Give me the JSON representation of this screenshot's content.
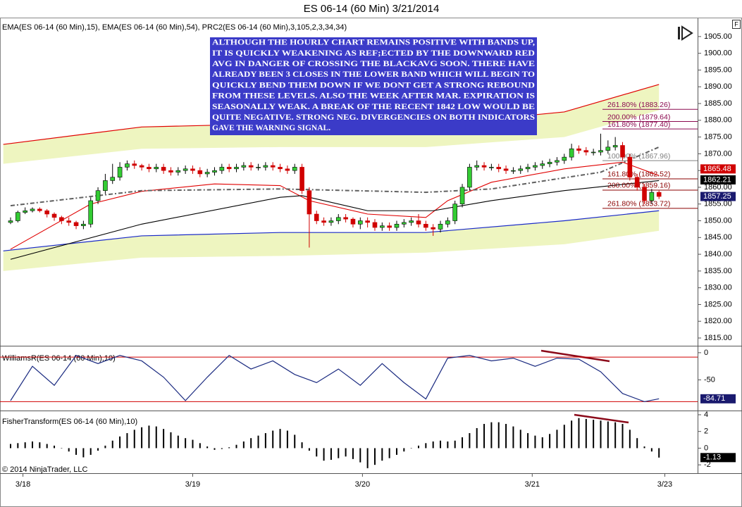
{
  "chart_data": [
    {
      "type": "candlestick",
      "title": "ES 06-14 (60 Min)  3/21/2014",
      "indicator_label": "EMA(ES 06-14 (60 Min),15), EMA(ES 06-14 (60 Min),54), PRC2(ES 06-14 (60 Min),3,105,2,3,34,34)",
      "xlim": [
        -1.45,
        94.3
      ],
      "ylim": [
        1812.9,
        1907.5
      ],
      "yticks": [
        {
          "value": 1905,
          "label": "1905.00"
        },
        {
          "value": 1900,
          "label": "1900.00"
        },
        {
          "value": 1895,
          "label": "1895.00"
        },
        {
          "value": 1890,
          "label": "1890.00"
        },
        {
          "value": 1885,
          "label": "1885.00"
        },
        {
          "value": 1880,
          "label": "1880.00"
        },
        {
          "value": 1875,
          "label": "1875.00"
        },
        {
          "value": 1870,
          "label": "1870.00"
        },
        {
          "value": 1865,
          "label": "1865.00"
        },
        {
          "value": 1860,
          "label": "1860.00"
        },
        {
          "value": 1855,
          "label": "1855.00"
        },
        {
          "value": 1850,
          "label": "1850.00"
        },
        {
          "value": 1845,
          "label": "1845.00"
        },
        {
          "value": 1840,
          "label": "1840.00"
        },
        {
          "value": 1835,
          "label": "1835.00"
        },
        {
          "value": 1830,
          "label": "1830.00"
        },
        {
          "value": 1825,
          "label": "1825.00"
        },
        {
          "value": 1820,
          "label": "1820.00"
        },
        {
          "value": 1815,
          "label": "1815.00"
        }
      ],
      "up_color": "#33cc33",
      "down_color": "#d00000",
      "open": [
        1849.5,
        1850,
        1852.5,
        1853,
        1853.5,
        1853,
        1852,
        1851,
        1850,
        1849.5,
        1848.5,
        1849,
        1856,
        1859,
        1862,
        1863,
        1866,
        1867,
        1866.5,
        1866,
        1865.5,
        1866,
        1865,
        1864.5,
        1865,
        1865.5,
        1865,
        1864,
        1864.5,
        1865,
        1866,
        1865.5,
        1866,
        1866.5,
        1866,
        1866,
        1866.5,
        1866,
        1865.5,
        1865,
        1866,
        1859,
        1852,
        1850,
        1849.5,
        1850,
        1851,
        1850.5,
        1849,
        1850,
        1849.5,
        1848,
        1848.5,
        1848,
        1849,
        1849.5,
        1850,
        1849,
        1848,
        1847.5,
        1849,
        1850,
        1855,
        1860,
        1866,
        1866.5,
        1866,
        1866,
        1865.5,
        1865,
        1865,
        1865.5,
        1866,
        1866.5,
        1867,
        1867.5,
        1868,
        1869,
        1871.5,
        1871,
        1870.5,
        1870.5,
        1871,
        1872,
        1872.5,
        1869,
        1863,
        1860,
        1856,
        1858.5
      ],
      "high": [
        1851,
        1853,
        1854,
        1854,
        1854,
        1853.5,
        1852.5,
        1851.5,
        1851,
        1850,
        1850,
        1857,
        1860,
        1864,
        1867,
        1867.5,
        1868,
        1868,
        1867,
        1867,
        1867,
        1867,
        1866,
        1866,
        1866.5,
        1866.5,
        1866,
        1865.5,
        1866,
        1867,
        1867,
        1867,
        1867.5,
        1867.5,
        1867,
        1867.5,
        1867.5,
        1867,
        1866.5,
        1867,
        1867,
        1860,
        1853,
        1851,
        1851,
        1852,
        1852,
        1851,
        1851,
        1851,
        1850.5,
        1849.5,
        1849.5,
        1850,
        1850.5,
        1851,
        1852,
        1850,
        1849,
        1850,
        1851,
        1856,
        1861,
        1867,
        1868,
        1867.5,
        1867,
        1867,
        1866.5,
        1866,
        1866.5,
        1867,
        1867.5,
        1868,
        1868.5,
        1869,
        1870,
        1873,
        1872.5,
        1872,
        1871.5,
        1876,
        1874,
        1875,
        1873.5,
        1870,
        1864,
        1861,
        1859.5,
        1859
      ],
      "low": [
        1849,
        1849.5,
        1852,
        1852.5,
        1852.5,
        1851,
        1850,
        1849,
        1848.5,
        1847.5,
        1847.5,
        1848,
        1855,
        1858,
        1861,
        1862,
        1865,
        1865.5,
        1865,
        1864.5,
        1864.5,
        1864,
        1863.5,
        1863.5,
        1864,
        1864,
        1863,
        1863,
        1863.5,
        1864,
        1864.5,
        1864.5,
        1865,
        1865,
        1865,
        1865,
        1865,
        1864.5,
        1864,
        1864,
        1858,
        1842,
        1849,
        1848.5,
        1848.5,
        1849,
        1849.5,
        1848,
        1847.5,
        1848,
        1847,
        1847,
        1847,
        1847,
        1848,
        1848.5,
        1848,
        1847,
        1845.5,
        1846.5,
        1848,
        1849,
        1854,
        1859,
        1865,
        1865,
        1865,
        1864.5,
        1864,
        1864,
        1864,
        1864.5,
        1865,
        1865.5,
        1866,
        1866.5,
        1867,
        1868,
        1870,
        1869.5,
        1869.5,
        1869.5,
        1870,
        1871,
        1868,
        1862,
        1859,
        1855,
        1855,
        1856.5
      ],
      "close": [
        1850,
        1852.5,
        1853,
        1853.5,
        1853,
        1852,
        1851,
        1850,
        1849.5,
        1848.5,
        1849,
        1856,
        1859,
        1862,
        1863,
        1866,
        1867,
        1866.5,
        1866,
        1865.5,
        1866,
        1865,
        1864.5,
        1865,
        1865.5,
        1865,
        1864,
        1864.5,
        1865,
        1866,
        1865.5,
        1866,
        1866.5,
        1866,
        1866,
        1866.5,
        1866,
        1865.5,
        1865,
        1866,
        1859,
        1852,
        1850,
        1849.5,
        1850,
        1851,
        1850.5,
        1849,
        1850,
        1849.5,
        1848,
        1848.5,
        1848,
        1849,
        1849.5,
        1850,
        1849,
        1848,
        1847.5,
        1849,
        1850,
        1855,
        1860,
        1866,
        1866.5,
        1866,
        1866,
        1865.5,
        1865,
        1865,
        1865.5,
        1866,
        1866.5,
        1867,
        1867.5,
        1868,
        1869,
        1871.5,
        1871,
        1870.5,
        1870.5,
        1871,
        1872,
        1872.5,
        1869,
        1863,
        1860,
        1856,
        1858.5,
        1857.25
      ],
      "bands": [
        {
          "x": [
            -1,
            18,
            37,
            57,
            76,
            89
          ],
          "upper": [
            1872.8,
            1878,
            1879,
            1878.5,
            1882.5,
            1890.7
          ],
          "lower": [
            1867,
            1871.5,
            1872,
            1872,
            1875,
            1883
          ],
          "fill": "#eef5c0",
          "line": "upper",
          "line_color": "#e00000"
        },
        {
          "x": [
            -1,
            18,
            37,
            57,
            76,
            89
          ],
          "upper": [
            1841,
            1845.5,
            1846.5,
            1846.5,
            1850,
            1853
          ],
          "lower": [
            1835,
            1839,
            1839.5,
            1840.5,
            1843,
            1847
          ],
          "fill": "#eef5c0",
          "line": "upper",
          "line_color": "#1a2ac8"
        }
      ],
      "overlays": [
        {
          "color": "#e00000",
          "dash": false,
          "x": [
            0,
            11,
            18,
            28,
            37,
            41,
            49,
            57,
            60,
            66,
            76,
            84,
            89
          ],
          "values": [
            1841.5,
            1855,
            1858.8,
            1861,
            1860.5,
            1856,
            1852,
            1851,
            1856,
            1861.5,
            1865.5,
            1867.5,
            1863.5
          ]
        },
        {
          "color": "#000000",
          "dash": false,
          "x": [
            0,
            18,
            37,
            40,
            49,
            58,
            66,
            76,
            89
          ],
          "values": [
            1838.5,
            1849,
            1857,
            1857.5,
            1853,
            1853,
            1856,
            1859,
            1862
          ]
        },
        {
          "color": "#606060",
          "dash": true,
          "x": [
            0,
            18,
            37,
            57,
            66,
            81,
            89
          ],
          "values": [
            1854.5,
            1859,
            1859.5,
            1858.5,
            1859.5,
            1864.5,
            1872
          ]
        }
      ],
      "levels": [
        {
          "label": "261.80% (1883.26)",
          "value": 1883.26,
          "color": "#8b0a50"
        },
        {
          "label": "200.00% (1879.64)",
          "value": 1879.64,
          "color": "#8b0a50"
        },
        {
          "label": "161.80% (1877.40)",
          "value": 1877.4,
          "color": "#8b0a50"
        },
        {
          "label": "100.00% (1867.96)",
          "value": 1867.96,
          "color": "#808080"
        },
        {
          "label": "161.80% (1862.52)",
          "value": 1862.52,
          "color": "#8b0000"
        },
        {
          "label": "200.00% (1859.16)",
          "value": 1859.16,
          "color": "#8b0000"
        },
        {
          "label": "261.80% (1853.72)",
          "value": 1853.72,
          "color": "#8b0000"
        }
      ],
      "markers": [
        {
          "value": 1865.48,
          "color": "#d00000"
        },
        {
          "value": 1862.21,
          "color": "#000000"
        },
        {
          "value": 1857.25,
          "color": "#1a1a6e"
        }
      ],
      "annotation": {
        "color": "#3b3bc8",
        "lines": [
          "ALTHOUGH THE HOURLY CHART REMAINS POSITIVE WITH BANDS UP,",
          "IT IS QUICKLY WEAKENING AS REF;ECTED BY THE DOWNWARD RED",
          "AVG IN DANGER OF CROSSING THE BLACKAVG  SOON. THERE HAVE",
          "ALREADY BEEN 3 CLOSES IN THE LOWER BAND WHICH WILL BEGIN TO",
          "QUICKLY BEND THEM DOWN IF WE DONT GET A STRONG REBOUND",
          "FROM THESE LEVELS. ALSO THE WEEK AFTER MAR. EXPIRATION IS",
          "SEASONALLY WEAK. A BREAK OF THE RECENT 1842 LOW WOULD BE",
          "QUITE NEGATIVE. STRONG NEG. DIVERGENCIES ON BOTH INDICATORS",
          "GAVE THE WARNING SIGNAL."
        ]
      }
    },
    {
      "type": "line",
      "indicator_label": "WilliamsR(ES 06-14 (60 Min),10)",
      "xlim": [
        -1.45,
        94.3
      ],
      "ylim": [
        -105,
        11.5
      ],
      "yticks": [
        0,
        -50
      ],
      "hlines": [
        -8,
        -90
      ],
      "hline_color": "#d00000",
      "series": [
        {
          "color": "#1a2a80",
          "x": [
            0,
            3,
            6,
            9,
            12,
            15,
            18,
            21,
            24,
            27,
            30,
            33,
            36,
            39,
            42,
            45,
            48,
            51,
            54,
            57,
            60,
            63,
            66,
            69,
            72,
            75,
            78,
            81,
            84,
            87,
            89
          ],
          "values": [
            -88,
            -25,
            -60,
            -5,
            -20,
            -5,
            -15,
            -45,
            -88,
            -45,
            -5,
            -30,
            -15,
            -40,
            -55,
            -30,
            -60,
            -20,
            -55,
            -85,
            -10,
            -5,
            -15,
            -10,
            -25,
            -10,
            -12,
            -35,
            -75,
            -90,
            -84.71
          ]
        }
      ],
      "markers": [
        {
          "value": -84.71,
          "color": "#1a1a6e"
        }
      ]
    },
    {
      "type": "bar",
      "indicator_label": "FisherTransform(ES 06-14 (60 Min),10)",
      "xlim": [
        -1.45,
        94.3
      ],
      "ylim": [
        -2.83,
        4.42
      ],
      "yticks": [
        4,
        2,
        0,
        -2
      ],
      "color": "#000000",
      "values": [
        0.5,
        0.6,
        0.7,
        0.8,
        0.7,
        0.5,
        0.3,
        0,
        -0.4,
        -0.8,
        -1.1,
        -0.8,
        -0.3,
        0.3,
        0.9,
        1.4,
        1.8,
        2.2,
        2.5,
        2.7,
        2.6,
        2.3,
        1.9,
        1.5,
        1.2,
        1.0,
        0.6,
        0.2,
        -0.2,
        -0.1,
        0.1,
        0.4,
        0.8,
        1.2,
        1.5,
        1.8,
        2.1,
        2.3,
        2.1,
        1.6,
        0.7,
        -0.3,
        -1.0,
        -1.5,
        -1.4,
        -1.2,
        -1.0,
        -1.3,
        -1.7,
        -2.4,
        -2.0,
        -1.5,
        -1.2,
        -0.8,
        -0.4,
        0.0,
        0.3,
        0.6,
        0.8,
        0.9,
        0.8,
        0.9,
        1.3,
        1.8,
        2.4,
        2.9,
        3.1,
        3.1,
        2.9,
        2.6,
        2.2,
        1.8,
        1.5,
        1.3,
        1.7,
        2.2,
        2.8,
        3.3,
        3.6,
        3.5,
        3.4,
        3.3,
        3.2,
        3.1,
        2.9,
        2.2,
        1.2,
        0.2,
        -0.4,
        -1.13
      ],
      "markers": [
        {
          "value": -1.13,
          "color": "#000000"
        }
      ],
      "xticks": [
        {
          "value": 1.7,
          "label": "3/18"
        },
        {
          "value": 25,
          "label": "3/19"
        },
        {
          "value": 48.3,
          "label": "3/20"
        },
        {
          "value": 71.6,
          "label": "3/21"
        },
        {
          "value": 89.8,
          "label": "3/23"
        }
      ],
      "footer": "© 2014 NinjaTrader, LLC"
    }
  ],
  "button": "F"
}
